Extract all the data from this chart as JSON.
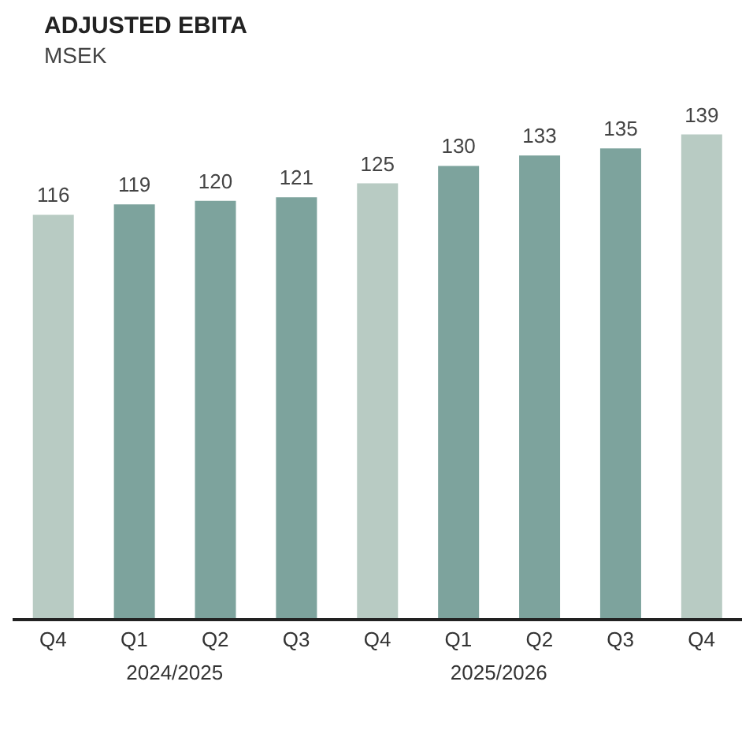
{
  "chart_data": {
    "type": "bar",
    "title": "ADJUSTED EBITA",
    "subtitle": "MSEK",
    "categories": [
      "Q4",
      "Q1",
      "Q2",
      "Q3",
      "Q4",
      "Q1",
      "Q2",
      "Q3",
      "Q4"
    ],
    "values": [
      116,
      119,
      120,
      121,
      125,
      130,
      133,
      135,
      139
    ],
    "colors": [
      "#b8cbc3",
      "#7da39d",
      "#7da39d",
      "#7da39d",
      "#b8cbc3",
      "#7da39d",
      "#7da39d",
      "#7da39d",
      "#b8cbc3"
    ],
    "data_labels": true,
    "annotations": [
      "2024/2025",
      "2025/2026"
    ]
  }
}
